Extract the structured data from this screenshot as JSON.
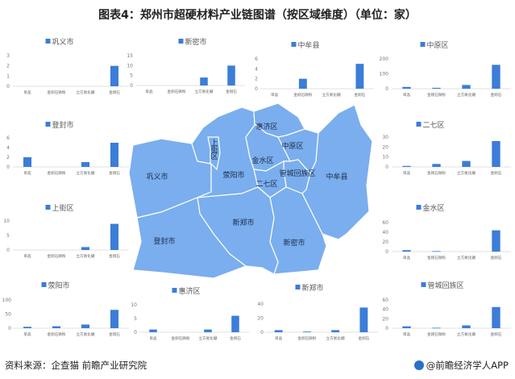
{
  "title": "图表4：郑州市超硬材料产业链图谱（按区域维度）（单位：家）",
  "footer": {
    "source": "资料来源：企查猫  前瞻产业研究院",
    "brand": "@前瞻经济学人APP"
  },
  "colors": {
    "bar": "#3b7dd8",
    "map_fill": "#7aaeee",
    "map_border": "#ffffff"
  },
  "map": {
    "districts": [
      "巩义市",
      "荥阳市",
      "上街区",
      "惠济区",
      "中原区",
      "金水区",
      "管城回族区",
      "二七区",
      "中牟县",
      "新郑市",
      "新密市",
      "登封市"
    ]
  },
  "chart_data": [
    {
      "type": "bar",
      "title": "巩义市",
      "categories": [
        "单晶",
        "金刚石微粉",
        "立方氮化硼",
        "金刚石"
      ],
      "series": [
        {
          "name": "巩义市",
          "values": [
            0,
            0,
            0,
            2
          ]
        }
      ],
      "ylim": [
        0,
        3
      ],
      "yticks": [
        0,
        1,
        2,
        3
      ]
    },
    {
      "type": "bar",
      "title": "新密市",
      "categories": [
        "单晶",
        "金刚石微粉",
        "立方氮化硼",
        "金刚石"
      ],
      "series": [
        {
          "name": "新密市",
          "values": [
            0,
            0,
            4,
            10
          ]
        }
      ],
      "ylim": [
        0,
        15
      ],
      "yticks": [
        0,
        5,
        10,
        15
      ]
    },
    {
      "type": "bar",
      "title": "中牟县",
      "categories": [
        "单晶",
        "金刚石微粉",
        "立方氮化硼",
        "金刚石"
      ],
      "series": [
        {
          "name": "中牟县",
          "values": [
            0,
            2,
            0,
            5
          ]
        }
      ],
      "ylim": [
        0,
        6
      ],
      "yticks": [
        0,
        2,
        4,
        6
      ]
    },
    {
      "type": "bar",
      "title": "中原区",
      "categories": [
        "单晶",
        "金刚石微粉",
        "立方氮化硼",
        "金刚石"
      ],
      "series": [
        {
          "name": "中原区",
          "values": [
            12,
            6,
            25,
            160
          ]
        }
      ],
      "ylim": [
        0,
        200
      ],
      "yticks": [
        0,
        100,
        200
      ]
    },
    {
      "type": "bar",
      "title": "登封市",
      "categories": [
        "单晶",
        "金刚石微粉",
        "立方氮化硼",
        "金刚石"
      ],
      "series": [
        {
          "name": "登封市",
          "values": [
            2,
            0,
            1,
            5
          ]
        }
      ],
      "ylim": [
        0,
        6
      ],
      "yticks": [
        0,
        2,
        4,
        6
      ]
    },
    {
      "type": "bar",
      "title": "上街区",
      "categories": [
        "单晶",
        "金刚石微粉",
        "立方氮化硼",
        "金刚石"
      ],
      "series": [
        {
          "name": "上街区",
          "values": [
            0,
            0,
            1,
            9
          ]
        }
      ],
      "ylim": [
        0,
        10
      ],
      "yticks": [
        0,
        5,
        10
      ]
    },
    {
      "type": "bar",
      "title": "二七区",
      "categories": [
        "单晶",
        "金刚石微粉",
        "立方氮化硼",
        "金刚石"
      ],
      "series": [
        {
          "name": "二七区",
          "values": [
            1,
            3,
            6,
            26
          ]
        }
      ],
      "ylim": [
        0,
        30
      ],
      "yticks": [
        0,
        10,
        20,
        30
      ]
    },
    {
      "type": "bar",
      "title": "金水区",
      "categories": [
        "单晶",
        "金刚石微粉",
        "立方氮化硼",
        "金刚石"
      ],
      "series": [
        {
          "name": "金水区",
          "values": [
            3,
            1,
            0,
            44
          ]
        }
      ],
      "ylim": [
        0,
        60
      ],
      "yticks": [
        0,
        20,
        40,
        60
      ]
    },
    {
      "type": "bar",
      "title": "荥阳市",
      "categories": [
        "单晶",
        "金刚石微粉",
        "立方氮化硼",
        "金刚石"
      ],
      "series": [
        {
          "name": "荥阳市",
          "values": [
            5,
            7,
            13,
            65
          ]
        }
      ],
      "ylim": [
        0,
        100
      ],
      "yticks": [
        0,
        50,
        100
      ]
    },
    {
      "type": "bar",
      "title": "惠济区",
      "categories": [
        "单晶",
        "金刚石微粉",
        "立方氮化硼",
        "金刚石"
      ],
      "series": [
        {
          "name": "惠济区",
          "values": [
            1,
            0,
            1,
            6
          ]
        }
      ],
      "ylim": [
        0,
        10
      ],
      "yticks": [
        0,
        5,
        10
      ]
    },
    {
      "type": "bar",
      "title": "新郑市",
      "categories": [
        "单晶",
        "金刚石微粉",
        "立方氮化硼",
        "金刚石"
      ],
      "series": [
        {
          "name": "新郑市",
          "values": [
            3,
            1,
            3,
            35
          ]
        }
      ],
      "ylim": [
        0,
        40
      ],
      "yticks": [
        0,
        20,
        40
      ]
    },
    {
      "type": "bar",
      "title": "管城回族区",
      "categories": [
        "单晶",
        "金刚石微粉",
        "立方氮化硼",
        "金刚石"
      ],
      "series": [
        {
          "name": "管城回族区",
          "values": [
            4,
            1,
            6,
            45
          ]
        }
      ],
      "ylim": [
        0,
        60
      ],
      "yticks": [
        0,
        20,
        40,
        60
      ]
    }
  ]
}
